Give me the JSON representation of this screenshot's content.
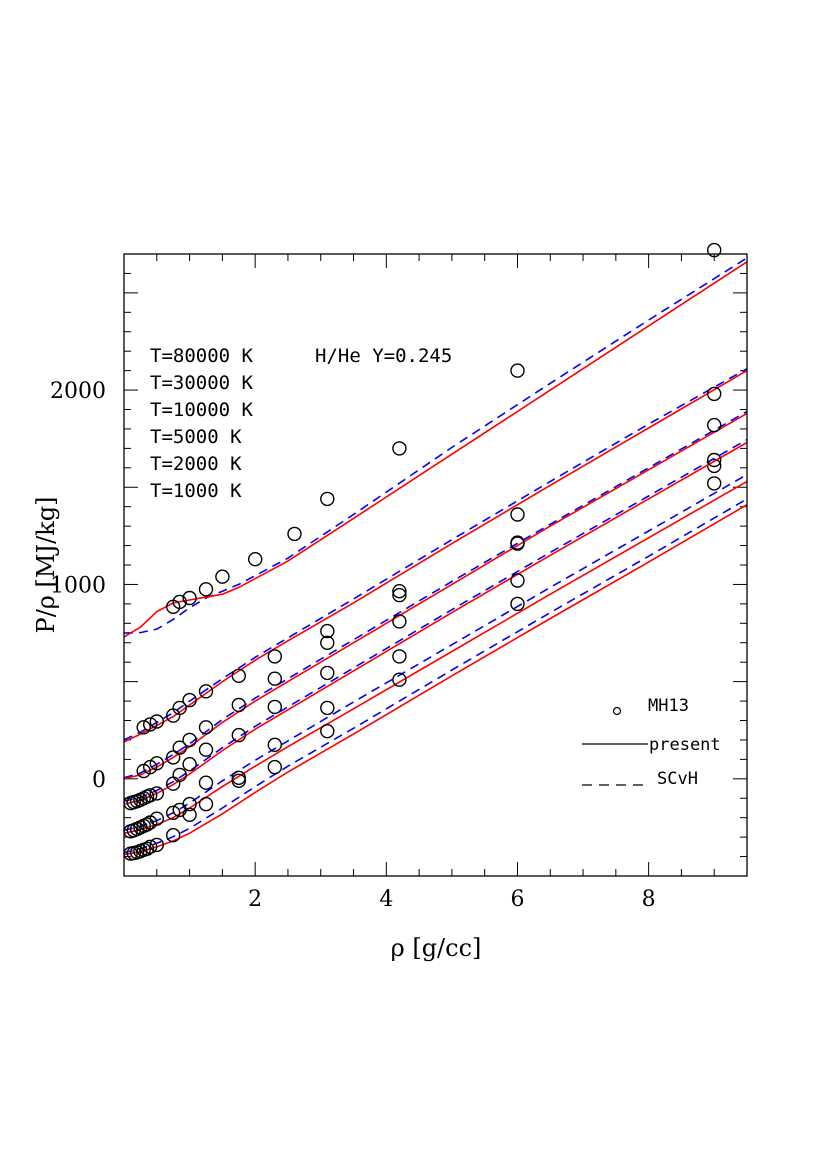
{
  "chart_data": {
    "type": "line",
    "xlabel": "ρ [g/cc]",
    "ylabel": "P/ρ [MJ/kg]",
    "xlim": [
      0.0,
      9.5
    ],
    "ylim": [
      -500,
      2700
    ],
    "x_ticks": [
      2,
      4,
      6,
      8
    ],
    "y_ticks": [
      0,
      1000,
      2000
    ],
    "x_tick_labels": [
      "2",
      "4",
      "6",
      "8"
    ],
    "y_tick_labels": [
      "0",
      "1000",
      "2000"
    ],
    "annotations": {
      "temperatures": [
        "T=80000 K",
        "T=30000 K",
        "T=10000 K",
        "T=5000 K",
        "T=2000 K",
        "T=1000 K"
      ],
      "mixture": "H/He Y=0.245"
    },
    "legend": {
      "placement": "lower-right",
      "entries": [
        {
          "label": "MH13",
          "style": "circle"
        },
        {
          "label": "present",
          "style": "solid"
        },
        {
          "label": "SCvH",
          "style": "dashed"
        }
      ]
    },
    "colors": {
      "present": "#ff0000",
      "SCvH": "#0000ff",
      "MH13": "#000000"
    },
    "series": [
      {
        "temperature": "T=80000 K",
        "present": {
          "x": [
            0.0,
            0.25,
            0.5,
            0.75,
            1.0,
            1.25,
            1.5,
            1.75,
            2.5,
            3.5,
            5.0,
            6.5,
            8.0,
            9.5
          ],
          "y": [
            730,
            780,
            860,
            905,
            920,
            935,
            950,
            985,
            1120,
            1340,
            1670,
            2000,
            2330,
            2660
          ]
        },
        "SCvH": {
          "x": [
            0.0,
            0.25,
            0.5,
            0.75,
            1.0,
            1.25,
            1.5,
            1.75,
            2.5,
            3.5,
            5.0,
            6.5,
            8.0,
            9.5
          ],
          "y": [
            750,
            752,
            770,
            820,
            880,
            930,
            965,
            1000,
            1135,
            1360,
            1705,
            2035,
            2360,
            2680
          ]
        },
        "MH13": {
          "x": [
            0.75,
            0.85,
            1.0,
            1.25,
            1.5,
            2.0,
            2.6,
            3.1,
            4.2,
            6.0,
            9.0
          ],
          "y": [
            885,
            910,
            930,
            975,
            1040,
            1130,
            1260,
            1440,
            1700,
            2100,
            2720
          ]
        }
      },
      {
        "temperature": "T=30000 K",
        "present": {
          "x": [
            0.0,
            0.25,
            0.5,
            0.75,
            1.0,
            1.5,
            2.0,
            2.5,
            3.5,
            5.0,
            6.5,
            8.0,
            9.5
          ],
          "y": [
            190,
            230,
            275,
            320,
            380,
            500,
            610,
            710,
            905,
            1210,
            1510,
            1805,
            2100
          ]
        },
        "SCvH": {
          "x": [
            0.0,
            0.25,
            0.5,
            0.75,
            1.0,
            1.5,
            2.0,
            2.5,
            3.5,
            5.0,
            6.5,
            8.0,
            9.5
          ],
          "y": [
            200,
            240,
            290,
            340,
            400,
            515,
            625,
            725,
            925,
            1230,
            1530,
            1825,
            2110
          ]
        },
        "MH13": {
          "x": [
            0.3,
            0.4,
            0.5,
            0.75,
            0.85,
            1.0,
            1.25,
            1.75,
            2.3,
            3.1,
            4.2,
            6.0,
            9.0
          ],
          "y": [
            265,
            280,
            295,
            325,
            365,
            405,
            450,
            530,
            630,
            760,
            945,
            1215,
            1610
          ]
        }
      },
      {
        "temperature": "T=10000 K",
        "present": {
          "x": [
            0.0,
            0.25,
            0.5,
            0.75,
            1.0,
            1.5,
            2.0,
            2.5,
            3.5,
            5.0,
            6.5,
            8.0,
            9.5
          ],
          "y": [
            0,
            20,
            60,
            110,
            165,
            290,
            400,
            500,
            700,
            1000,
            1300,
            1590,
            1880
          ]
        },
        "SCvH": {
          "x": [
            0.0,
            0.25,
            0.5,
            0.75,
            1.0,
            1.5,
            2.0,
            2.5,
            3.5,
            5.0,
            6.5,
            8.0,
            9.5
          ],
          "y": [
            5,
            30,
            75,
            125,
            180,
            305,
            415,
            515,
            715,
            1015,
            1310,
            1600,
            1890
          ]
        },
        "MH13": {
          "x": [
            0.3,
            0.4,
            0.5,
            0.75,
            0.85,
            1.0,
            1.25,
            1.75,
            2.3,
            3.1,
            4.2,
            6.0,
            9.0
          ],
          "y": [
            40,
            60,
            80,
            110,
            160,
            200,
            265,
            380,
            515,
            700,
            965,
            1360,
            1980
          ]
        }
      },
      {
        "temperature": "T=5000 K",
        "present": {
          "x": [
            0.0,
            0.25,
            0.5,
            0.75,
            1.0,
            1.5,
            2.0,
            2.5,
            3.5,
            5.0,
            6.5,
            8.0,
            9.5
          ],
          "y": [
            -130,
            -110,
            -75,
            -30,
            25,
            145,
            255,
            355,
            555,
            855,
            1150,
            1440,
            1730
          ]
        },
        "SCvH": {
          "x": [
            0.0,
            0.25,
            0.5,
            0.75,
            1.0,
            1.5,
            2.0,
            2.5,
            3.5,
            5.0,
            6.5,
            8.0,
            9.5
          ],
          "y": [
            -115,
            -95,
            -60,
            -15,
            40,
            160,
            270,
            370,
            570,
            870,
            1165,
            1455,
            1745
          ]
        },
        "MH13": {
          "x": [
            0.1,
            0.15,
            0.2,
            0.25,
            0.3,
            0.35,
            0.4,
            0.5,
            0.75,
            0.85,
            1.0,
            1.25,
            1.75,
            2.3,
            3.1,
            4.2,
            6.0,
            9.0
          ],
          "y": [
            -125,
            -120,
            -115,
            -108,
            -100,
            -92,
            -85,
            -75,
            -25,
            20,
            75,
            150,
            225,
            370,
            545,
            810,
            1210,
            1820
          ]
        }
      },
      {
        "temperature": "T=2000 K",
        "present": {
          "x": [
            0.0,
            0.25,
            0.5,
            0.75,
            1.0,
            1.5,
            2.0,
            2.5,
            3.5,
            5.0,
            6.5,
            8.0,
            9.5
          ],
          "y": [
            -280,
            -262,
            -235,
            -200,
            -150,
            -40,
            65,
            165,
            360,
            655,
            950,
            1240,
            1530
          ]
        },
        "SCvH": {
          "x": [
            0.0,
            0.25,
            0.5,
            0.75,
            1.0,
            1.5,
            2.0,
            2.5,
            3.5,
            5.0,
            6.5,
            8.0,
            9.5
          ],
          "y": [
            -265,
            -245,
            -215,
            -175,
            -125,
            -10,
            95,
            195,
            395,
            690,
            985,
            1275,
            1565
          ]
        },
        "MH13": {
          "x": [
            0.1,
            0.15,
            0.2,
            0.25,
            0.3,
            0.35,
            0.4,
            0.5,
            0.75,
            0.85,
            1.0,
            1.25,
            1.75,
            2.3,
            3.1,
            4.2,
            6.0,
            9.0
          ],
          "y": [
            -270,
            -265,
            -258,
            -250,
            -242,
            -235,
            -225,
            -205,
            -175,
            -160,
            -130,
            -20,
            5,
            175,
            365,
            630,
            1020,
            1640
          ]
        }
      },
      {
        "temperature": "T=1000 K",
        "present": {
          "x": [
            0.0,
            0.25,
            0.5,
            0.75,
            1.0,
            1.5,
            2.0,
            2.5,
            3.5,
            5.0,
            6.5,
            8.0,
            9.5
          ],
          "y": [
            -390,
            -375,
            -350,
            -320,
            -280,
            -180,
            -70,
            35,
            230,
            530,
            825,
            1115,
            1410
          ]
        },
        "SCvH": {
          "x": [
            0.0,
            0.25,
            0.5,
            0.75,
            1.0,
            1.5,
            2.0,
            2.5,
            3.5,
            5.0,
            6.5,
            8.0,
            9.5
          ],
          "y": [
            -380,
            -360,
            -332,
            -298,
            -255,
            -150,
            -40,
            65,
            260,
            560,
            855,
            1145,
            1440
          ]
        },
        "MH13": {
          "x": [
            0.1,
            0.15,
            0.2,
            0.25,
            0.3,
            0.35,
            0.4,
            0.5,
            0.75,
            1.0,
            1.25,
            1.75,
            2.3,
            3.1,
            4.2,
            6.0,
            9.0
          ],
          "y": [
            -385,
            -382,
            -378,
            -372,
            -365,
            -360,
            -350,
            -340,
            -290,
            -185,
            -130,
            -10,
            60,
            245,
            510,
            900,
            1520
          ]
        }
      }
    ]
  }
}
